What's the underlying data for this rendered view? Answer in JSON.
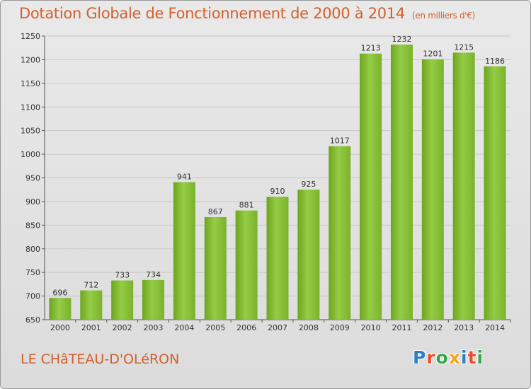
{
  "title": "Dotation Globale de Fonctionnement de 2000 à 2014",
  "subtitle": "(en milliers d'€)",
  "place": "LE CHâTEAU-D'OLéRON",
  "logo": {
    "text": "Proxiti",
    "letter_colors": [
      "#2f7ec2",
      "#e94d2a",
      "#3aa24b",
      "#f2a41e",
      "#2f7ec2",
      "#e94d2a",
      "#3aa24b"
    ]
  },
  "chart_data": {
    "type": "bar",
    "categories": [
      "2000",
      "2001",
      "2002",
      "2003",
      "2004",
      "2005",
      "2006",
      "2007",
      "2008",
      "2009",
      "2010",
      "2011",
      "2012",
      "2013",
      "2014"
    ],
    "values": [
      696,
      712,
      733,
      734,
      941,
      867,
      881,
      910,
      925,
      1017,
      1213,
      1232,
      1201,
      1215,
      1186
    ],
    "ylim": [
      650,
      1250
    ],
    "yticks": [
      650,
      700,
      750,
      800,
      850,
      900,
      950,
      1000,
      1050,
      1100,
      1150,
      1200,
      1250
    ],
    "grid": true,
    "bar_color": "#7cb530"
  }
}
